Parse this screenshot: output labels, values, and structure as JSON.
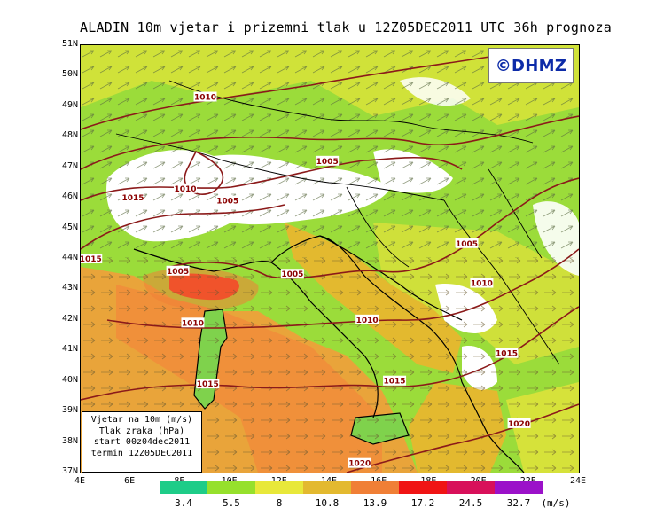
{
  "title": "ALADIN 10m vjetar i prizemni tlak u 12Z05DEC2011 UTC 36h prognoza",
  "logo": "©DHMZ",
  "lat_labels": [
    "51N",
    "50N",
    "49N",
    "48N",
    "47N",
    "46N",
    "45N",
    "44N",
    "43N",
    "42N",
    "41N",
    "40N",
    "39N",
    "38N",
    "37N"
  ],
  "lon_labels": [
    "4E",
    "6E",
    "8E",
    "10E",
    "12E",
    "14E",
    "16E",
    "18E",
    "20E",
    "22E",
    "24E"
  ],
  "info_box": {
    "line1": "Vjetar na 10m (m/s)",
    "line2": "Tlak zraka (hPa)",
    "line3": "start 00z04dec2011",
    "line4": "termin 12Z05DEC2011"
  },
  "isobar_labels": [
    {
      "text": "1010",
      "lon": 9.0,
      "lat": 49.3
    },
    {
      "text": "1005",
      "lon": 13.9,
      "lat": 47.2
    },
    {
      "text": "1015",
      "lon": 6.1,
      "lat": 46.0
    },
    {
      "text": "1010",
      "lon": 8.2,
      "lat": 46.3
    },
    {
      "text": "1005",
      "lon": 9.9,
      "lat": 45.9
    },
    {
      "text": "1015",
      "lon": 4.4,
      "lat": 44.0
    },
    {
      "text": "1005",
      "lon": 7.9,
      "lat": 43.6
    },
    {
      "text": "1005",
      "lon": 12.5,
      "lat": 43.5
    },
    {
      "text": "1005",
      "lon": 19.5,
      "lat": 44.5
    },
    {
      "text": "1010",
      "lon": 20.1,
      "lat": 43.2
    },
    {
      "text": "1010",
      "lon": 8.5,
      "lat": 41.9
    },
    {
      "text": "1010",
      "lon": 15.5,
      "lat": 42.0
    },
    {
      "text": "1015",
      "lon": 21.1,
      "lat": 40.9
    },
    {
      "text": "1015",
      "lon": 9.1,
      "lat": 39.9
    },
    {
      "text": "1015",
      "lon": 16.6,
      "lat": 40.0
    },
    {
      "text": "1020",
      "lon": 21.6,
      "lat": 38.6
    },
    {
      "text": "1020",
      "lon": 15.2,
      "lat": 37.3
    }
  ],
  "colorbar": {
    "unit": "(m/s)",
    "colors": [
      "#1ecc88",
      "#96e02c",
      "#e8e83a",
      "#e3b92f",
      "#f07f36",
      "#f01414",
      "#d8105a",
      "#9b11c9"
    ],
    "labels": [
      "3.4",
      "5.5",
      "8",
      "10.8",
      "13.9",
      "17.2",
      "24.5",
      "32.7"
    ]
  },
  "colors": {
    "sea_wind": "#f0a23c",
    "land_green": "#9bdc3a",
    "isobar": "#8b1a1a",
    "snow": "#ffffff"
  }
}
